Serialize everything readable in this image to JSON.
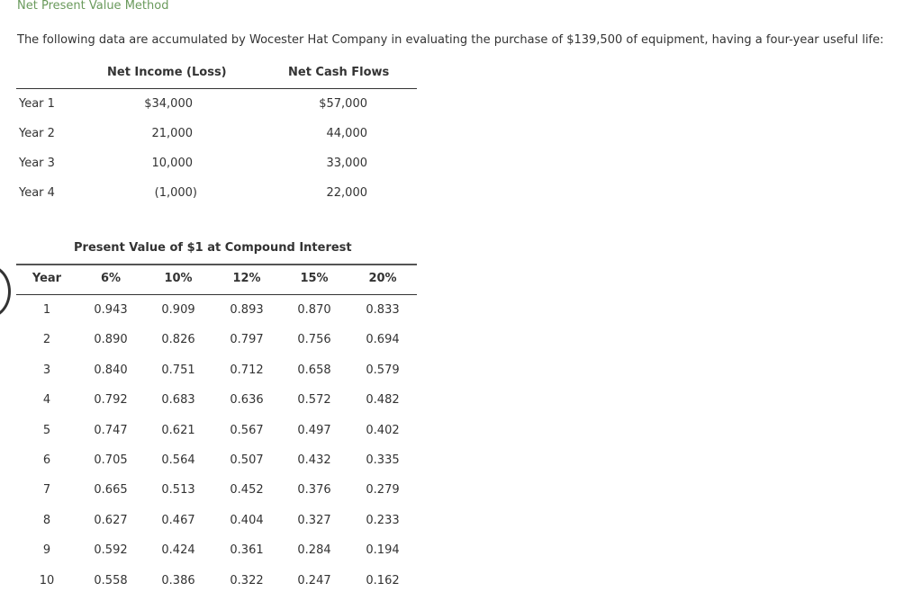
{
  "page": {
    "title": "Net Present Value Method",
    "intro": "The following data are accumulated by Wocester Hat Company in evaluating the purchase of $139,500 of equipment, having a four-year useful life:",
    "accent_color": "#6a9a5c"
  },
  "cash_table": {
    "headers": {
      "net_income": "Net Income (Loss)",
      "net_cash_flows": "Net Cash Flows"
    },
    "rows": [
      {
        "label": "Year 1",
        "net_income": "$34,000",
        "net_cash_flows": "$57,000"
      },
      {
        "label": "Year 2",
        "net_income": "21,000",
        "net_cash_flows": "44,000"
      },
      {
        "label": "Year 3",
        "net_income": "10,000",
        "net_cash_flows": "33,000"
      },
      {
        "label": "Year 4",
        "net_income": "(1,000)",
        "net_cash_flows": "22,000"
      }
    ]
  },
  "pv_table": {
    "title": "Present Value of $1 at Compound Interest",
    "headers": [
      "Year",
      "6%",
      "10%",
      "12%",
      "15%",
      "20%"
    ],
    "rows": [
      [
        "1",
        "0.943",
        "0.909",
        "0.893",
        "0.870",
        "0.833"
      ],
      [
        "2",
        "0.890",
        "0.826",
        "0.797",
        "0.756",
        "0.694"
      ],
      [
        "3",
        "0.840",
        "0.751",
        "0.712",
        "0.658",
        "0.579"
      ],
      [
        "4",
        "0.792",
        "0.683",
        "0.636",
        "0.572",
        "0.482"
      ],
      [
        "5",
        "0.747",
        "0.621",
        "0.567",
        "0.497",
        "0.402"
      ],
      [
        "6",
        "0.705",
        "0.564",
        "0.507",
        "0.432",
        "0.335"
      ],
      [
        "7",
        "0.665",
        "0.513",
        "0.452",
        "0.376",
        "0.279"
      ],
      [
        "8",
        "0.627",
        "0.467",
        "0.404",
        "0.327",
        "0.233"
      ],
      [
        "9",
        "0.592",
        "0.424",
        "0.361",
        "0.284",
        "0.194"
      ],
      [
        "10",
        "0.558",
        "0.386",
        "0.322",
        "0.247",
        "0.162"
      ]
    ]
  }
}
